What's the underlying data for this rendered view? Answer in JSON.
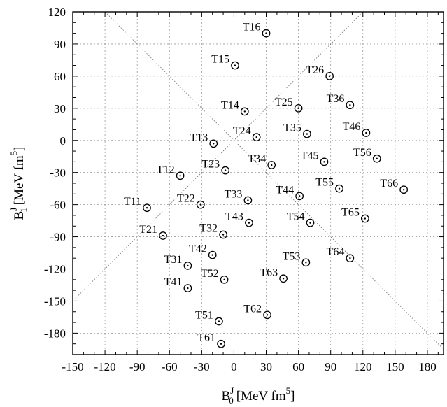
{
  "chart_data": {
    "type": "scatter",
    "xlabel": {
      "main": "B",
      "sup": "J",
      "sub": "0",
      "unit_prefix": "[MeV fm",
      "unit_sup": "5",
      "unit_suffix": "]"
    },
    "ylabel": {
      "main": "B",
      "sup": "J",
      "sub": "1",
      "unit_prefix": "[MeV fm",
      "unit_sup": "5",
      "unit_suffix": "]"
    },
    "xlim": [
      -150,
      195
    ],
    "ylim": [
      -200,
      120
    ],
    "xticks": [
      -150,
      -120,
      -90,
      -60,
      -30,
      0,
      30,
      60,
      90,
      120,
      150,
      180
    ],
    "yticks": [
      120,
      90,
      60,
      30,
      0,
      -30,
      -60,
      -90,
      -120,
      -150,
      -180
    ],
    "xtick_labels": [
      "-150",
      "-120",
      "-90",
      "-60",
      "-30",
      "0",
      "30",
      "60",
      "90",
      "120",
      "150",
      "180"
    ],
    "ytick_labels": [
      "120",
      "90",
      "60",
      "30",
      "0",
      "-30",
      "-60",
      "-90",
      "-120",
      "-150",
      "-180"
    ],
    "grid": true,
    "diagonals": [
      "y = x",
      "y = -x"
    ],
    "points": [
      {
        "label": "T11",
        "x": -81,
        "y": -63
      },
      {
        "label": "T12",
        "x": -50,
        "y": -33
      },
      {
        "label": "T13",
        "x": -19,
        "y": -3
      },
      {
        "label": "T14",
        "x": 10,
        "y": 27
      },
      {
        "label": "T15",
        "x": 1,
        "y": 70
      },
      {
        "label": "T16",
        "x": 30,
        "y": 100
      },
      {
        "label": "T21",
        "x": -66,
        "y": -89
      },
      {
        "label": "T22",
        "x": -31,
        "y": -60
      },
      {
        "label": "T23",
        "x": -8,
        "y": -28
      },
      {
        "label": "T24",
        "x": 21,
        "y": 3
      },
      {
        "label": "T25",
        "x": 60,
        "y": 30
      },
      {
        "label": "T26",
        "x": 89,
        "y": 60
      },
      {
        "label": "T31",
        "x": -43,
        "y": -117
      },
      {
        "label": "T32",
        "x": -10,
        "y": -88
      },
      {
        "label": "T33",
        "x": 13,
        "y": -56
      },
      {
        "label": "T34",
        "x": 35,
        "y": -23
      },
      {
        "label": "T35",
        "x": 68,
        "y": 6
      },
      {
        "label": "T36",
        "x": 108,
        "y": 33
      },
      {
        "label": "T41",
        "x": -43,
        "y": -138
      },
      {
        "label": "T42",
        "x": -20,
        "y": -107
      },
      {
        "label": "T43",
        "x": 14,
        "y": -77
      },
      {
        "label": "T44",
        "x": 61,
        "y": -52
      },
      {
        "label": "T45",
        "x": 84,
        "y": -20
      },
      {
        "label": "T46",
        "x": 123,
        "y": 7
      },
      {
        "label": "T51",
        "x": -14,
        "y": -169
      },
      {
        "label": "T52",
        "x": -9,
        "y": -130
      },
      {
        "label": "T53",
        "x": 67,
        "y": -114
      },
      {
        "label": "T54",
        "x": 71,
        "y": -77
      },
      {
        "label": "T55",
        "x": 98,
        "y": -45
      },
      {
        "label": "T56",
        "x": 133,
        "y": -17
      },
      {
        "label": "T61",
        "x": -12,
        "y": -190
      },
      {
        "label": "T62",
        "x": 31,
        "y": -163
      },
      {
        "label": "T63",
        "x": 46,
        "y": -129
      },
      {
        "label": "T64",
        "x": 108,
        "y": -110
      },
      {
        "label": "T65",
        "x": 122,
        "y": -73
      },
      {
        "label": "T66",
        "x": 158,
        "y": -46
      }
    ]
  }
}
